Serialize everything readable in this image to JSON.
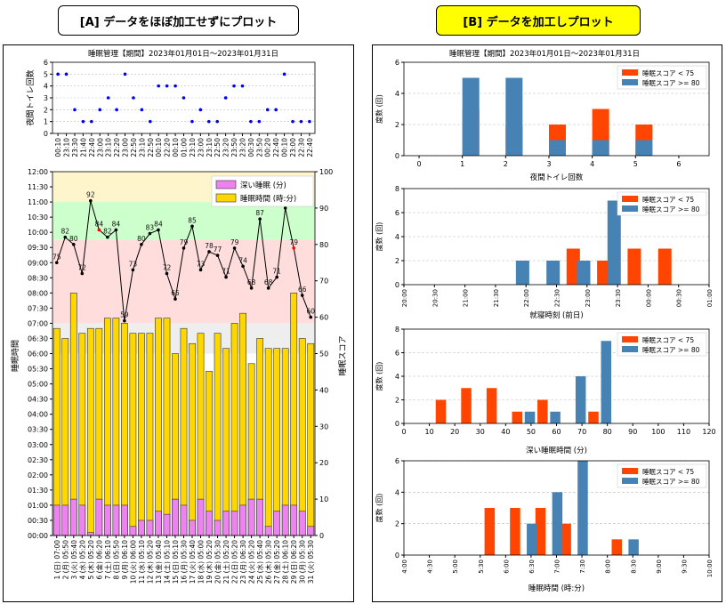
{
  "headers": {
    "a": "[A] データをほぼ加工せずにプロット",
    "b": "[B] データを加工しプロット"
  },
  "colors": {
    "red": "#ff4500",
    "blue": "#4682b4",
    "deep": "#ee82ee",
    "total": "#ffd700",
    "bandTop": "#fff5cc",
    "bandGreen": "#ccffcc",
    "bandRed": "#ffdddd",
    "bandGray": "#eeeeee"
  },
  "chart_data": [
    {
      "type": "scatter",
      "id": "toilet",
      "title": "睡眠管理【期間】2023年01月01日〜2023年01月31日",
      "ylabel": "夜間トイレ回数",
      "ylim": [
        0,
        6
      ],
      "yticks": [
        0,
        1,
        2,
        3,
        4,
        5,
        6
      ],
      "x": [
        "00:10",
        "23:10",
        "23:30",
        "21:40",
        "22:40",
        "23:00",
        "23:10",
        "22:20",
        "23:00",
        "22:50",
        "23:10",
        "22:50",
        "00:10",
        "22:20",
        "00:10",
        "01:00",
        "23:10",
        "23:00",
        "23:10",
        "22:50",
        "23:20",
        "23:50",
        "23:20",
        "00:30",
        "23:50",
        "00:20",
        "22:40",
        "00:10",
        "23:00",
        "22:30",
        "22:40"
      ],
      "values": [
        5,
        5,
        2,
        1,
        1,
        2,
        3,
        2,
        5,
        3,
        2,
        1,
        4,
        4,
        4,
        3,
        1,
        2,
        1,
        1,
        3,
        4,
        4,
        1,
        1,
        2,
        2,
        5,
        1,
        1,
        1
      ]
    },
    {
      "type": "bar",
      "id": "sleep",
      "ylabel": "睡眠時間",
      "y2label": "睡眠スコア",
      "ylim": [
        0,
        12
      ],
      "y2lim": [
        0,
        100
      ],
      "yticks": [
        "00:00",
        "00:30",
        "01:00",
        "01:30",
        "02:00",
        "02:30",
        "03:00",
        "03:30",
        "04:00",
        "04:30",
        "05:00",
        "05:30",
        "06:00",
        "06:30",
        "07:00",
        "07:30",
        "08:00",
        "08:30",
        "09:00",
        "09:30",
        "10:00",
        "10:30",
        "11:00",
        "11:30",
        "12:00"
      ],
      "y2ticks": [
        0,
        10,
        20,
        30,
        40,
        50,
        60,
        70,
        80,
        90,
        100
      ],
      "categories": [
        "1 (日) 07:00",
        "2 (月) 05:50",
        "3 (火) 05:40",
        "4 (水) 05:20",
        "5 (木) 05:20",
        "6 (金) 06:20",
        "7 (土) 06:10",
        "8 (日) 05:50",
        "9 (月) 06:10",
        "10 (火) 06:00",
        "11 (水) 05:10",
        "12 (木) 05:20",
        "13 (金) 05:40",
        "14 (土) 05:10",
        "15 (日) 05:10",
        "16 (月) 05:30",
        "17 (火) 05:40",
        "18 (水) 05:00",
        "19 (木) 05:20",
        "20 (金) 05:30",
        "21 (土) 05:20",
        "22 (日) 05:20",
        "23 (月) 06:30",
        "24 (火) 05:20",
        "25 (水) 05:40",
        "26 (木) 05:30",
        "27 (金) 05:20",
        "28 (土) 06:10",
        "29 (日) 06:20",
        "30 (月) 05:30",
        "31 (火) 05:30"
      ],
      "series": [
        {
          "name": "深い睡眠 (分)",
          "values": [
            1.0,
            1.0,
            1.2,
            1.0,
            0.1,
            1.2,
            1.0,
            1.0,
            1.0,
            0.3,
            0.5,
            0.5,
            0.8,
            0.7,
            1.2,
            1.0,
            0.5,
            1.2,
            0.8,
            0.5,
            0.8,
            0.8,
            1.0,
            1.2,
            1.2,
            0.3,
            0.8,
            1.0,
            1.0,
            0.8,
            0.3
          ]
        },
        {
          "name": "睡眠時間 (時:分)",
          "values": [
            6.83,
            6.5,
            8.0,
            6.67,
            6.83,
            6.83,
            7.17,
            7.17,
            7.0,
            6.67,
            6.67,
            6.67,
            7.17,
            7.17,
            6.0,
            6.83,
            6.33,
            6.67,
            5.42,
            6.67,
            6.17,
            7.0,
            7.33,
            5.67,
            6.5,
            6.17,
            6.17,
            6.17,
            8.0,
            6.5,
            6.33
          ]
        },
        {
          "name": "睡眠スコア",
          "values": [
            75,
            82,
            80,
            72,
            92,
            84,
            82,
            84,
            59,
            73,
            80,
            83,
            84,
            72,
            65,
            79,
            85,
            73,
            78,
            77,
            71,
            79,
            74,
            68,
            87,
            68,
            71,
            90,
            79,
            66,
            60
          ]
        }
      ],
      "highlight": [
        5,
        28
      ]
    },
    {
      "type": "bar",
      "id": "histToilet",
      "title": "睡眠管理【期間】2023年01月01日〜2023年01月31日",
      "xlabel": "夜間トイレ回数",
      "ylabel": "度数 (回)",
      "ylim": [
        0,
        6
      ],
      "yticks": [
        0,
        2,
        4,
        6
      ],
      "xticks": [
        "0",
        "1",
        "2",
        "3",
        "4",
        "5",
        "6"
      ],
      "series": [
        {
          "name": "睡眠スコア < 75",
          "bins": [
            1,
            2,
            3,
            4,
            5
          ],
          "values": [
            3,
            2,
            2,
            3,
            2
          ]
        },
        {
          "name": "睡眠スコア >= 80",
          "bins": [
            1,
            2,
            3,
            4,
            5
          ],
          "values": [
            5,
            5,
            1,
            1,
            1
          ]
        }
      ]
    },
    {
      "type": "bar",
      "id": "histBed",
      "xlabel": "就寝時刻 (前日)",
      "ylabel": "度数 (回)",
      "ylim": [
        0,
        8
      ],
      "yticks": [
        0,
        2,
        4,
        6,
        8
      ],
      "xticks": [
        "20:00",
        "20:30",
        "21:00",
        "21:30",
        "22:00",
        "22:30",
        "23:00",
        "23:30",
        "00:00",
        "00:30",
        "01:00"
      ],
      "series": [
        {
          "name": "睡眠スコア < 75",
          "bins": [
            5.33,
            6.33,
            7.33,
            8.33
          ],
          "values": [
            3,
            2,
            3,
            3
          ]
        },
        {
          "name": "睡眠スコア >= 80",
          "bins": [
            3.67,
            4.67,
            5.67,
            6.67
          ],
          "values": [
            2,
            2,
            2,
            7
          ]
        }
      ]
    },
    {
      "type": "bar",
      "id": "histDeep",
      "xlabel": "深い睡眠時間 (分)",
      "ylabel": "度数 (回)",
      "ylim": [
        0,
        8
      ],
      "yticks": [
        0,
        2,
        4,
        6,
        8
      ],
      "xticks": [
        "0",
        "10",
        "20",
        "30",
        "40",
        "50",
        "60",
        "70",
        "80",
        "90",
        "100",
        "110",
        "120"
      ],
      "series": [
        {
          "name": "睡眠スコア < 75",
          "bins": [
            12.5,
            22.5,
            32.5,
            42.5,
            52.5,
            72.5
          ],
          "values": [
            2,
            3,
            3,
            1,
            2,
            1
          ]
        },
        {
          "name": "睡眠スコア >= 80",
          "bins": [
            47.5,
            57.5,
            67.5,
            77.5
          ],
          "values": [
            1,
            1,
            4,
            7
          ]
        }
      ]
    },
    {
      "type": "bar",
      "id": "histSleep",
      "xlabel": "睡眠時間 (時:分)",
      "ylabel": "度数 (回)",
      "ylim": [
        0,
        6
      ],
      "yticks": [
        0,
        2,
        4,
        6
      ],
      "xticks": [
        "4:00",
        "4:30",
        "5:00",
        "5:30",
        "6:00",
        "6:30",
        "7:00",
        "7:30",
        "8:00",
        "8:30",
        "9:00",
        "9:30",
        "10:00"
      ],
      "series": [
        {
          "name": "睡眠スコア < 75",
          "bins": [
            3.17,
            4.17,
            5.17,
            6.17,
            8.17
          ],
          "values": [
            3,
            3,
            3,
            2,
            1
          ]
        },
        {
          "name": "睡眠スコア >= 80",
          "bins": [
            4.83,
            5.83,
            6.83,
            8.83
          ],
          "values": [
            2,
            4,
            6,
            1
          ]
        }
      ]
    }
  ]
}
